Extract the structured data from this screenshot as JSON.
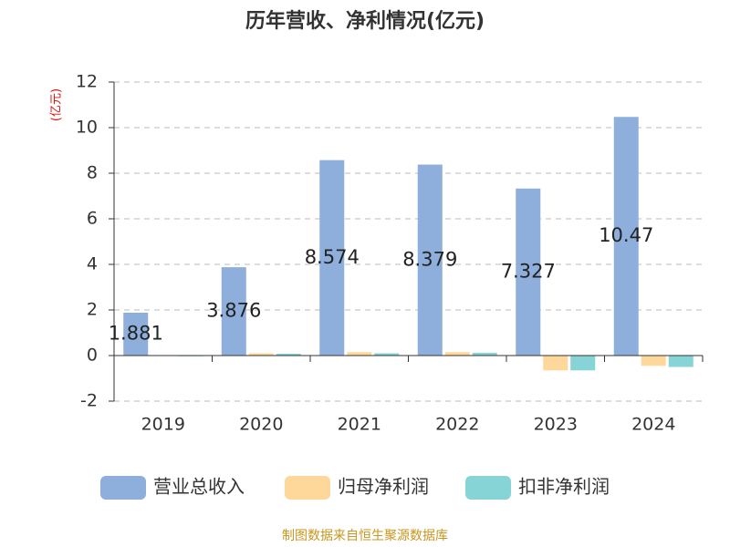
{
  "chart_data": {
    "type": "bar",
    "title": "历年营收、净利情况(亿元)",
    "y_label": "(亿元)",
    "source": "制图数据来自恒生聚源数据库",
    "categories": [
      "2019",
      "2020",
      "2021",
      "2022",
      "2023",
      "2024"
    ],
    "series": [
      {
        "name": "营业总收入",
        "color": "#8eaedc",
        "values": [
          1.881,
          3.876,
          8.574,
          8.379,
          7.327,
          10.47
        ],
        "show_labels": true
      },
      {
        "name": "归母净利润",
        "color": "#fdd89a",
        "values": [
          0.02,
          0.1,
          0.15,
          0.15,
          -0.65,
          -0.45
        ]
      },
      {
        "name": "扣非净利润",
        "color": "#86d4d6",
        "values": [
          -0.03,
          0.08,
          0.1,
          0.12,
          -0.65,
          -0.5
        ]
      }
    ],
    "ylim": [
      -2,
      12
    ],
    "yticks": [
      -2,
      0,
      2,
      4,
      6,
      8,
      10,
      12
    ],
    "grid": true
  }
}
